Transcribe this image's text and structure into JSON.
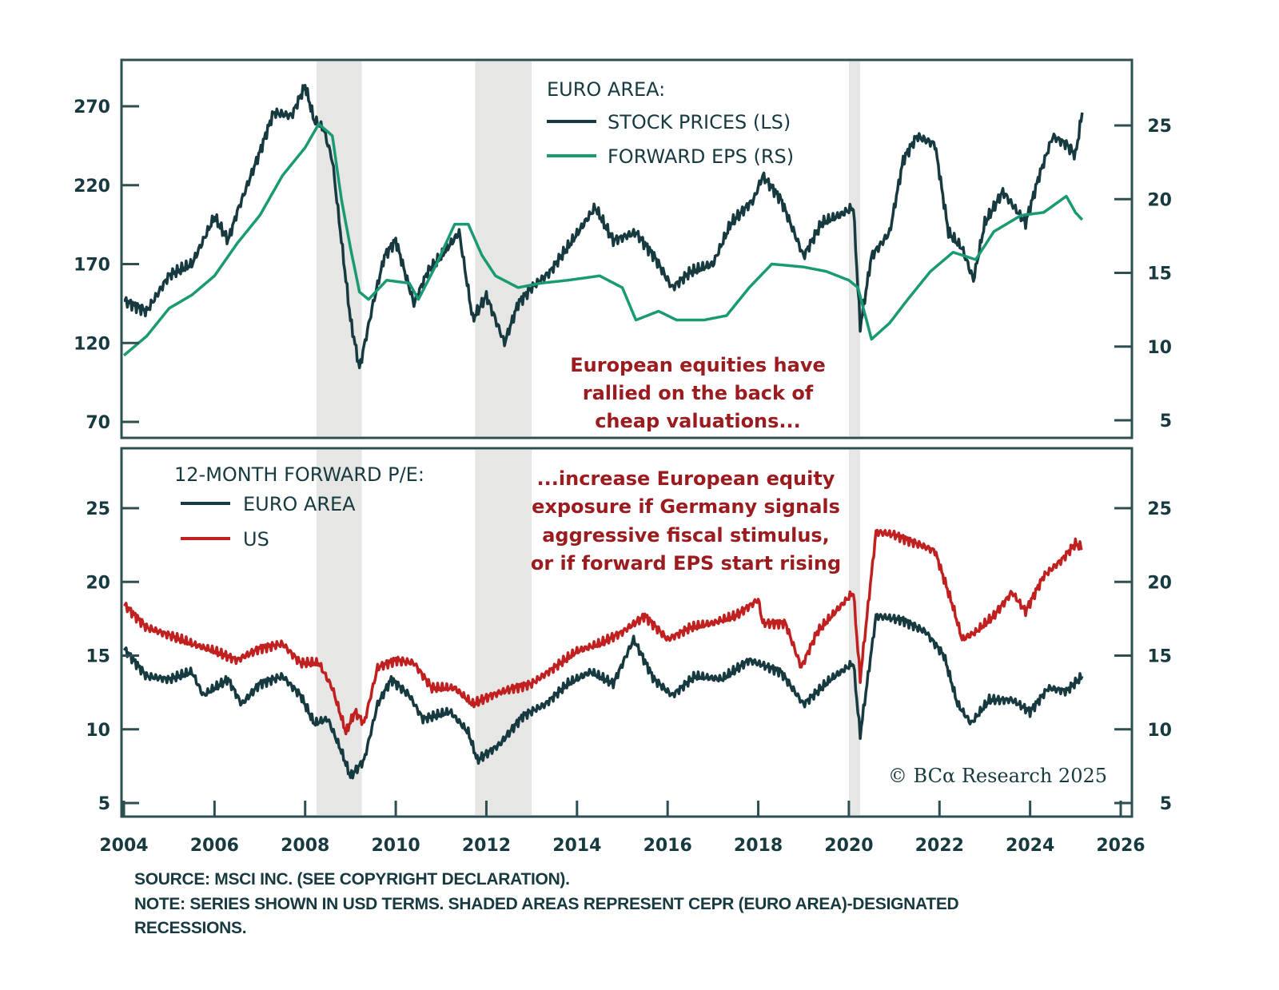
{
  "chart_data": [
    {
      "type": "line",
      "panel": "top",
      "title": "EURO AREA:",
      "x_range": [
        2004,
        2026
      ],
      "x_ticks": [
        "2004",
        "2006",
        "2008",
        "2010",
        "2012",
        "2014",
        "2016",
        "2018",
        "2020",
        "2022",
        "2024",
        "2026"
      ],
      "y_left": {
        "range": [
          62,
          300
        ],
        "ticks": [
          70,
          120,
          170,
          220,
          270
        ]
      },
      "y_right": {
        "range": [
          4.5,
          29
        ],
        "ticks": [
          5,
          10,
          15,
          20,
          25
        ]
      },
      "legend_position": "top-center",
      "series": [
        {
          "name": "STOCK PRICES (LS)",
          "axis": "left",
          "color": "#163a3f",
          "points": [
            [
              2004.0,
              147
            ],
            [
              2004.5,
              140
            ],
            [
              2005.0,
              163
            ],
            [
              2005.5,
              170
            ],
            [
              2006.0,
              200
            ],
            [
              2006.3,
              185
            ],
            [
              2006.5,
              203
            ],
            [
              2007.0,
              241
            ],
            [
              2007.3,
              266
            ],
            [
              2007.7,
              264
            ],
            [
              2008.0,
              283
            ],
            [
              2008.2,
              261
            ],
            [
              2008.4,
              256
            ],
            [
              2008.6,
              236
            ],
            [
              2008.8,
              185
            ],
            [
              2009.0,
              135
            ],
            [
              2009.2,
              104
            ],
            [
              2009.5,
              145
            ],
            [
              2009.75,
              175
            ],
            [
              2010.0,
              185
            ],
            [
              2010.4,
              145
            ],
            [
              2010.7,
              165
            ],
            [
              2011.0,
              175
            ],
            [
              2011.4,
              190
            ],
            [
              2011.7,
              135
            ],
            [
              2012.0,
              150
            ],
            [
              2012.4,
              120
            ],
            [
              2012.7,
              145
            ],
            [
              2013.0,
              155
            ],
            [
              2013.4,
              165
            ],
            [
              2013.9,
              185
            ],
            [
              2014.4,
              206
            ],
            [
              2014.8,
              185
            ],
            [
              2015.3,
              190
            ],
            [
              2015.7,
              175
            ],
            [
              2016.1,
              155
            ],
            [
              2016.5,
              165
            ],
            [
              2017.0,
              170
            ],
            [
              2017.4,
              196
            ],
            [
              2017.9,
              211
            ],
            [
              2018.1,
              226
            ],
            [
              2018.5,
              211
            ],
            [
              2019.0,
              175
            ],
            [
              2019.4,
              196
            ],
            [
              2019.8,
              201
            ],
            [
              2020.1,
              206
            ],
            [
              2020.25,
              130
            ],
            [
              2020.5,
              175
            ],
            [
              2020.9,
              190
            ],
            [
              2021.2,
              236
            ],
            [
              2021.5,
              251
            ],
            [
              2021.9,
              246
            ],
            [
              2022.2,
              190
            ],
            [
              2022.5,
              180
            ],
            [
              2022.75,
              160
            ],
            [
              2023.0,
              196
            ],
            [
              2023.4,
              216
            ],
            [
              2023.9,
              196
            ],
            [
              2024.2,
              226
            ],
            [
              2024.5,
              251
            ],
            [
              2024.8,
              246
            ],
            [
              2025.0,
              239
            ],
            [
              2025.15,
              266
            ]
          ]
        },
        {
          "name": "FORWARD EPS (RS)",
          "axis": "right",
          "color": "#1a9a73",
          "points": [
            [
              2004.0,
              9.4
            ],
            [
              2004.5,
              10.7
            ],
            [
              2005.0,
              12.6
            ],
            [
              2005.5,
              13.5
            ],
            [
              2006.0,
              14.8
            ],
            [
              2006.5,
              17.0
            ],
            [
              2007.0,
              18.9
            ],
            [
              2007.5,
              21.6
            ],
            [
              2008.0,
              23.5
            ],
            [
              2008.3,
              25.1
            ],
            [
              2008.6,
              24.3
            ],
            [
              2008.8,
              20.0
            ],
            [
              2009.0,
              16.7
            ],
            [
              2009.2,
              13.7
            ],
            [
              2009.4,
              13.2
            ],
            [
              2009.8,
              14.5
            ],
            [
              2010.3,
              14.3
            ],
            [
              2010.5,
              13.2
            ],
            [
              2010.9,
              15.6
            ],
            [
              2011.3,
              18.3
            ],
            [
              2011.6,
              18.3
            ],
            [
              2011.9,
              16.2
            ],
            [
              2012.2,
              14.8
            ],
            [
              2012.7,
              14.0
            ],
            [
              2013.2,
              14.3
            ],
            [
              2013.8,
              14.5
            ],
            [
              2014.5,
              14.8
            ],
            [
              2015.0,
              14.0
            ],
            [
              2015.3,
              11.8
            ],
            [
              2015.8,
              12.4
            ],
            [
              2016.2,
              11.8
            ],
            [
              2016.8,
              11.8
            ],
            [
              2017.3,
              12.1
            ],
            [
              2017.8,
              14.0
            ],
            [
              2018.3,
              15.6
            ],
            [
              2019.0,
              15.4
            ],
            [
              2019.5,
              15.1
            ],
            [
              2020.0,
              14.5
            ],
            [
              2020.2,
              14.0
            ],
            [
              2020.5,
              10.5
            ],
            [
              2020.9,
              11.6
            ],
            [
              2021.3,
              13.2
            ],
            [
              2021.8,
              15.1
            ],
            [
              2022.3,
              16.4
            ],
            [
              2022.8,
              15.9
            ],
            [
              2023.2,
              17.8
            ],
            [
              2023.8,
              18.9
            ],
            [
              2024.3,
              19.1
            ],
            [
              2024.8,
              20.2
            ],
            [
              2025.0,
              19.1
            ],
            [
              2025.15,
              18.6
            ]
          ]
        }
      ],
      "annotation": [
        "European equities have",
        "rallied on the back of",
        "cheap valuations..."
      ]
    },
    {
      "type": "line",
      "panel": "bottom",
      "title": "12-MONTH FORWARD P/E:",
      "x_range": [
        2004,
        2026
      ],
      "x_ticks": [
        "2004",
        "2006",
        "2008",
        "2010",
        "2012",
        "2014",
        "2016",
        "2018",
        "2020",
        "2022",
        "2024",
        "2026"
      ],
      "y_left": {
        "range": [
          4,
          29.5
        ],
        "ticks": [
          5,
          10,
          15,
          20,
          25
        ]
      },
      "y_right": {
        "range": [
          4,
          29.5
        ],
        "ticks": [
          5,
          10,
          15,
          20,
          25
        ]
      },
      "legend_position": "top-left",
      "series": [
        {
          "name": "EURO AREA",
          "color": "#163a3f",
          "points": [
            [
              2004.0,
              15.5
            ],
            [
              2004.5,
              13.6
            ],
            [
              2005.0,
              13.4
            ],
            [
              2005.5,
              13.9
            ],
            [
              2005.75,
              12.3
            ],
            [
              2006.3,
              13.4
            ],
            [
              2006.6,
              11.7
            ],
            [
              2007.0,
              13.1
            ],
            [
              2007.5,
              13.6
            ],
            [
              2007.9,
              12.3
            ],
            [
              2008.2,
              10.4
            ],
            [
              2008.5,
              10.7
            ],
            [
              2008.8,
              8.5
            ],
            [
              2009.0,
              6.8
            ],
            [
              2009.3,
              7.9
            ],
            [
              2009.6,
              11.7
            ],
            [
              2009.9,
              13.4
            ],
            [
              2010.3,
              12.3
            ],
            [
              2010.6,
              10.7
            ],
            [
              2011.2,
              11.2
            ],
            [
              2011.6,
              9.8
            ],
            [
              2011.8,
              7.9
            ],
            [
              2012.3,
              9.0
            ],
            [
              2012.8,
              10.9
            ],
            [
              2013.3,
              11.7
            ],
            [
              2013.8,
              13.1
            ],
            [
              2014.3,
              13.9
            ],
            [
              2014.8,
              13.1
            ],
            [
              2015.25,
              16.1
            ],
            [
              2015.7,
              13.4
            ],
            [
              2016.1,
              12.3
            ],
            [
              2016.6,
              13.6
            ],
            [
              2017.2,
              13.4
            ],
            [
              2017.8,
              14.7
            ],
            [
              2018.5,
              13.9
            ],
            [
              2019.0,
              11.7
            ],
            [
              2019.6,
              13.4
            ],
            [
              2020.1,
              14.5
            ],
            [
              2020.25,
              9.6
            ],
            [
              2020.6,
              17.7
            ],
            [
              2021.2,
              17.4
            ],
            [
              2021.7,
              16.6
            ],
            [
              2022.1,
              15.0
            ],
            [
              2022.4,
              11.7
            ],
            [
              2022.7,
              10.4
            ],
            [
              2023.1,
              12.0
            ],
            [
              2023.6,
              12.0
            ],
            [
              2024.0,
              11.2
            ],
            [
              2024.4,
              12.8
            ],
            [
              2024.8,
              12.6
            ],
            [
              2025.15,
              13.6
            ]
          ]
        },
        {
          "name": "US",
          "color": "#c0201f",
          "points": [
            [
              2004.0,
              18.5
            ],
            [
              2004.5,
              16.9
            ],
            [
              2005.0,
              16.4
            ],
            [
              2005.5,
              15.8
            ],
            [
              2006.0,
              15.3
            ],
            [
              2006.5,
              14.7
            ],
            [
              2007.0,
              15.5
            ],
            [
              2007.5,
              15.8
            ],
            [
              2007.9,
              14.5
            ],
            [
              2008.3,
              14.5
            ],
            [
              2008.6,
              12.8
            ],
            [
              2008.9,
              9.8
            ],
            [
              2009.1,
              11.2
            ],
            [
              2009.3,
              10.4
            ],
            [
              2009.6,
              14.2
            ],
            [
              2010.0,
              14.7
            ],
            [
              2010.4,
              14.5
            ],
            [
              2010.8,
              12.8
            ],
            [
              2011.3,
              12.8
            ],
            [
              2011.7,
              11.7
            ],
            [
              2012.1,
              12.3
            ],
            [
              2012.6,
              12.8
            ],
            [
              2013.0,
              13.1
            ],
            [
              2013.5,
              14.2
            ],
            [
              2014.0,
              15.3
            ],
            [
              2014.5,
              15.8
            ],
            [
              2015.0,
              16.6
            ],
            [
              2015.5,
              17.7
            ],
            [
              2016.0,
              16.1
            ],
            [
              2016.5,
              16.9
            ],
            [
              2017.0,
              17.2
            ],
            [
              2017.5,
              17.7
            ],
            [
              2018.0,
              18.8
            ],
            [
              2018.1,
              17.2
            ],
            [
              2018.6,
              17.2
            ],
            [
              2018.95,
              14.2
            ],
            [
              2019.3,
              16.6
            ],
            [
              2019.8,
              18.3
            ],
            [
              2020.1,
              19.3
            ],
            [
              2020.25,
              13.4
            ],
            [
              2020.6,
              23.4
            ],
            [
              2021.0,
              23.2
            ],
            [
              2021.5,
              22.6
            ],
            [
              2021.9,
              22.1
            ],
            [
              2022.3,
              18.3
            ],
            [
              2022.5,
              16.1
            ],
            [
              2022.8,
              16.6
            ],
            [
              2023.2,
              17.7
            ],
            [
              2023.6,
              19.3
            ],
            [
              2023.9,
              18.0
            ],
            [
              2024.3,
              20.4
            ],
            [
              2024.7,
              21.5
            ],
            [
              2025.0,
              22.6
            ],
            [
              2025.15,
              22.3
            ]
          ]
        }
      ],
      "annotation": [
        "...increase European equity",
        "exposure if Germany signals",
        "aggressive fiscal stimulus,",
        "or if forward EPS start rising"
      ]
    }
  ],
  "recessions": [
    [
      2008.25,
      2009.25
    ],
    [
      2011.75,
      2013.0
    ],
    [
      2020.0,
      2020.25
    ]
  ],
  "colors": {
    "axis": "#2e4f52",
    "text": "#163a3f",
    "euro": "#163a3f",
    "eps": "#1a9a73",
    "us": "#c0201f",
    "annotation": "#9b1b1e",
    "recession": "#e6e6e4"
  },
  "credit": "© BCα Research 2025",
  "footer": {
    "source": "SOURCE: MSCI INC. (SEE COPYRIGHT DECLARATION).",
    "note_line1": "NOTE: SERIES SHOWN IN USD TERMS. SHADED AREAS REPRESENT CEPR (EURO AREA)-DESIGNATED",
    "note_line2": "RECESSIONS."
  }
}
